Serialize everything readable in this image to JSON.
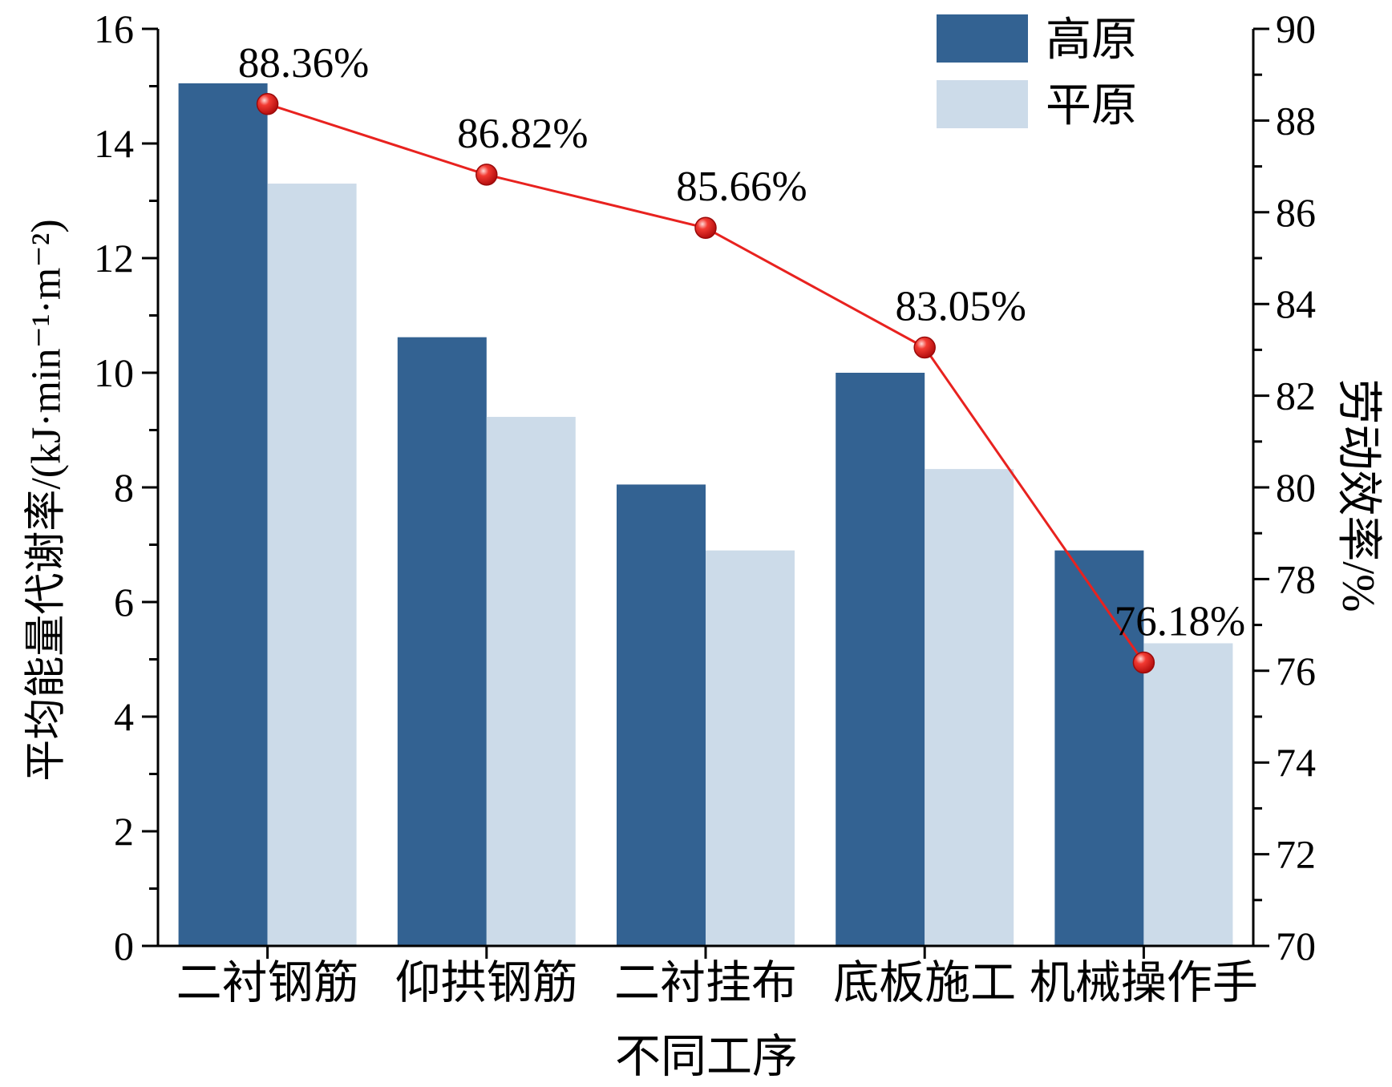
{
  "chart_data": {
    "type": "bar",
    "categories": [
      "二衬钢筋",
      "仰拱钢筋",
      "二衬挂布",
      "底板施工",
      "机械操作手"
    ],
    "xlabel": "不同工序",
    "ylabel": "平均能量代谢率/(kJ·min⁻¹·m⁻²)",
    "ylabel_right": "劳动效率/%",
    "ylim": [
      0,
      16
    ],
    "yticks": [
      "0",
      "2",
      "4",
      "6",
      "8",
      "10",
      "12",
      "14",
      "16"
    ],
    "ylim_right": [
      70,
      90
    ],
    "yticks_right": [
      "70",
      "72",
      "74",
      "76",
      "78",
      "80",
      "82",
      "84",
      "86",
      "88",
      "90"
    ],
    "legend_position": "top-right",
    "series": [
      {
        "name": "高原",
        "kind": "bar",
        "axis": "left",
        "color": "#336292",
        "values": [
          15.05,
          10.62,
          8.05,
          10.0,
          6.9
        ]
      },
      {
        "name": "平原",
        "kind": "bar",
        "axis": "left",
        "color": "#ccdbe9",
        "values": [
          13.3,
          9.23,
          6.9,
          8.32,
          5.28
        ]
      },
      {
        "kind": "line",
        "axis": "right",
        "color": "#e8221f",
        "values": [
          88.36,
          86.82,
          85.66,
          83.05,
          76.18
        ],
        "labels": [
          "88.36%",
          "86.82%",
          "85.66%",
          "83.05%",
          "76.18%"
        ]
      }
    ]
  }
}
